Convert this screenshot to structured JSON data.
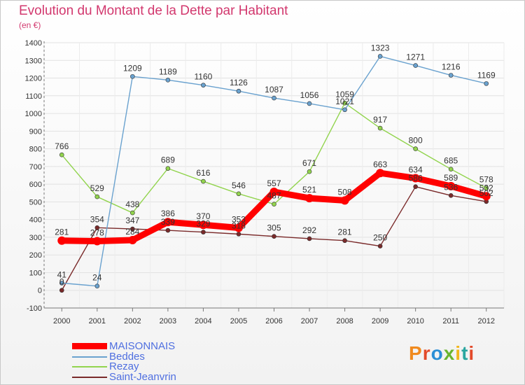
{
  "header": {
    "title": "Evolution du Montant de la Dette par Habitant",
    "unit": "(en €)"
  },
  "logo": {
    "text": "Proxiti",
    "colors": [
      "#f08a1e",
      "#e34a2a",
      "#2a8fd6",
      "#6ab52f",
      "#f2b71d",
      "#2aa6a0",
      "#e34a2a"
    ]
  },
  "chart_data": {
    "type": "line",
    "x": [
      "2000",
      "2001",
      "2002",
      "2003",
      "2004",
      "2005",
      "2006",
      "2007",
      "2008",
      "2009",
      "2010",
      "2011",
      "2012"
    ],
    "ylim": [
      -100,
      1400
    ],
    "yticks": [
      "-100",
      "0",
      "100",
      "200",
      "300",
      "400",
      "500",
      "600",
      "700",
      "800",
      "900",
      "1000",
      "1100",
      "1200",
      "1300",
      "1400"
    ],
    "grid": true,
    "legend": "bottom-left",
    "series": [
      {
        "name": "MAISONNAIS",
        "color": "#ff0000",
        "values": [
          281,
          278,
          284,
          386,
          370,
          353,
          557,
          521,
          508,
          663,
          634,
          589,
          532
        ],
        "labels": [
          "281",
          "278",
          "284",
          "386",
          "370",
          "353",
          "557",
          "521",
          "508",
          "663",
          "634",
          "589",
          "532"
        ]
      },
      {
        "name": "Beddes",
        "color": "#6aa2cf",
        "values": [
          41,
          24,
          1209,
          1189,
          1160,
          1126,
          1087,
          1056,
          1021,
          1323,
          1271,
          1216,
          1169
        ],
        "labels": [
          "41",
          "24",
          "1209",
          "1189",
          "1160",
          "1126",
          "1087",
          "1056",
          "1021",
          "1323",
          "1271",
          "1216",
          "1169"
        ]
      },
      {
        "name": "Rezay",
        "color": "#92d44e",
        "values": [
          766,
          529,
          438,
          689,
          616,
          546,
          487,
          671,
          1059,
          917,
          800,
          685,
          578
        ],
        "labels": [
          "766",
          "529",
          "438",
          "689",
          "616",
          "546",
          "487",
          "671",
          "1059",
          "917",
          "800",
          "685",
          "578"
        ]
      },
      {
        "name": "Saint-Jeanvrin",
        "color": "#7a2a2a",
        "values": [
          0,
          354,
          347,
          339,
          329,
          318,
          305,
          292,
          281,
          250,
          586,
          536,
          502
        ],
        "labels": [
          "0",
          "354",
          "347",
          "339",
          "329",
          "318",
          "305",
          "292",
          "281",
          "250",
          "586",
          "536",
          "502"
        ]
      }
    ]
  }
}
